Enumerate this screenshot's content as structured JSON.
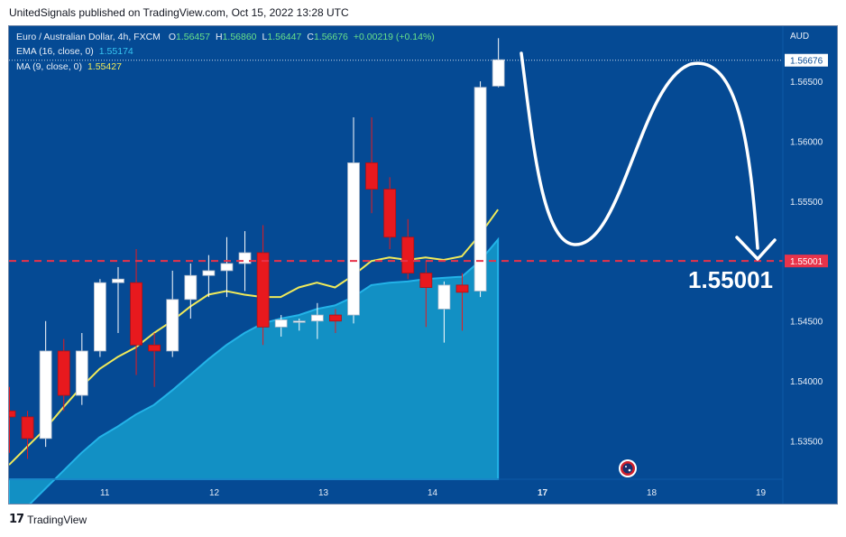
{
  "header": {
    "published_line": "UnitedSignals published on TradingView.com, Oct 15, 2022 13:28 UTC"
  },
  "footer": {
    "brand": "TradingView"
  },
  "legend": {
    "symbol": "Euro / Australian Dollar, 4h, FXCM",
    "ohlc": [
      {
        "k": "O",
        "v": "1.56457"
      },
      {
        "k": "H",
        "v": "1.56860"
      },
      {
        "k": "L",
        "v": "1.56447"
      },
      {
        "k": "C",
        "v": "1.56676"
      },
      {
        "k": "",
        "v": "+0.00219 (+0.14%)"
      }
    ],
    "ema_label": "EMA (16, close, 0)",
    "ema_value": "1.55174",
    "ma_label": "MA (9, close, 0)",
    "ma_value": "1.55427"
  },
  "colors": {
    "background": "#054a94",
    "up_candle": "#ffffff",
    "down_candle": "#e8191e",
    "ema_area": "#1290c4",
    "ma_line": "#f0ea5a",
    "level_line": "#e8334a",
    "last_price_bg": "#ffffff",
    "level_label_bg": "#e8334a"
  },
  "chart_data": {
    "type": "candlestick",
    "currency_label": "AUD",
    "x_tick_labels": [
      "11",
      "12",
      "13",
      "14",
      "17",
      "18",
      "19"
    ],
    "y_ticks": [
      "1.53500",
      "1.54000",
      "1.54500",
      "1.55000",
      "1.55500",
      "1.56000",
      "1.56500"
    ],
    "ylim": [
      1.5318,
      1.5693
    ],
    "last_price": "1.56676",
    "level_price": "1.55001",
    "level_annotation": "1.55001",
    "ohlc": [
      [
        1.5375,
        1.5395,
        1.534,
        1.537
      ],
      [
        1.537,
        1.5375,
        1.5335,
        1.5352
      ],
      [
        1.5352,
        1.545,
        1.5345,
        1.5425
      ],
      [
        1.5425,
        1.5435,
        1.5375,
        1.5388
      ],
      [
        1.5388,
        1.544,
        1.538,
        1.5425
      ],
      [
        1.5425,
        1.5485,
        1.542,
        1.5482
      ],
      [
        1.5482,
        1.5495,
        1.544,
        1.5485
      ],
      [
        1.5482,
        1.551,
        1.5405,
        1.543
      ],
      [
        1.543,
        1.544,
        1.5395,
        1.5425
      ],
      [
        1.5425,
        1.5492,
        1.542,
        1.5468
      ],
      [
        1.5468,
        1.5498,
        1.5452,
        1.5488
      ],
      [
        1.5488,
        1.5505,
        1.547,
        1.5492
      ],
      [
        1.5492,
        1.552,
        1.547,
        1.5498
      ],
      [
        1.5498,
        1.5525,
        1.5475,
        1.5507
      ],
      [
        1.5507,
        1.553,
        1.543,
        1.5445
      ],
      [
        1.5445,
        1.5455,
        1.5437,
        1.5451
      ],
      [
        1.545,
        1.5452,
        1.5442,
        1.545
      ],
      [
        1.545,
        1.5465,
        1.5435,
        1.5455
      ],
      [
        1.5455,
        1.546,
        1.544,
        1.545
      ],
      [
        1.5455,
        1.562,
        1.5448,
        1.5582
      ],
      [
        1.5582,
        1.562,
        1.554,
        1.556
      ],
      [
        1.556,
        1.557,
        1.551,
        1.552
      ],
      [
        1.552,
        1.5535,
        1.5485,
        1.549
      ],
      [
        1.549,
        1.55,
        1.5445,
        1.5478
      ],
      [
        1.546,
        1.5483,
        1.5432,
        1.548
      ],
      [
        1.548,
        1.549,
        1.5442,
        1.5474
      ],
      [
        1.5475,
        1.565,
        1.547,
        1.5645
      ],
      [
        1.5646,
        1.5686,
        1.5645,
        1.5668
      ]
    ],
    "ema16": [
      1.528,
      1.5295,
      1.531,
      1.5325,
      1.534,
      1.5353,
      1.5362,
      1.5372,
      1.538,
      1.5392,
      1.5405,
      1.5418,
      1.543,
      1.544,
      1.5448,
      1.5452,
      1.5455,
      1.546,
      1.5463,
      1.547,
      1.548,
      1.5482,
      1.5483,
      1.5485,
      1.5486,
      1.5487,
      1.55,
      1.5518
    ],
    "ma9": [
      1.533,
      1.5345,
      1.536,
      1.5378,
      1.5395,
      1.541,
      1.542,
      1.5428,
      1.544,
      1.545,
      1.5462,
      1.5472,
      1.5475,
      1.5472,
      1.547,
      1.547,
      1.5478,
      1.5482,
      1.5478,
      1.5488,
      1.55,
      1.5503,
      1.5501,
      1.5503,
      1.5501,
      1.5504,
      1.5522,
      1.5543
    ]
  }
}
